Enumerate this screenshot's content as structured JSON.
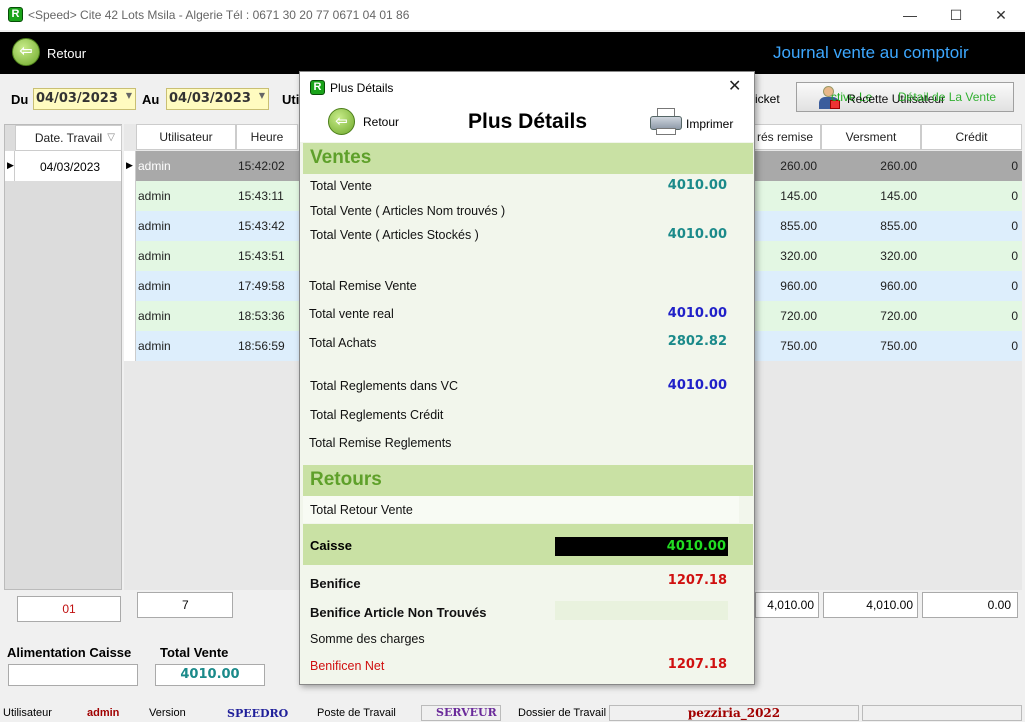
{
  "window": {
    "title": "<Speed>  Cite 42 Lots Msila - Algerie Tél : 0671 30 20 77      0671 04 01 86",
    "minimize": "—",
    "maximize": "☐",
    "close": "✕"
  },
  "header": {
    "back_label": "Retour",
    "page_title": "Journal vente au comptoir"
  },
  "filters": {
    "from_label": "Du",
    "from_date": "04/03/2023",
    "to_label": "Au",
    "to_date": "04/03/2023",
    "user_label_partial": "Uti",
    "ticket_partial": "icket",
    "recette_btn": "Recette Utilisateur",
    "detail_overlay": "Détail de La Vente",
    "detail_overlay_pre": "ctive Le"
  },
  "left_grid": {
    "header": "Date. Travail",
    "rows": [
      "04/03/2023"
    ],
    "footer_count": "01"
  },
  "grid": {
    "columns": {
      "utilisateur": "Utilisateur",
      "heure": "Heure",
      "apres_remise": "rés remise",
      "versment": "Versment",
      "credit": "Crédit"
    },
    "rows": [
      {
        "user": "admin",
        "time": "15:42:02",
        "remise": "260.00",
        "versment": "260.00",
        "credit": "0"
      },
      {
        "user": "admin",
        "time": "15:43:11",
        "remise": "145.00",
        "versment": "145.00",
        "credit": "0"
      },
      {
        "user": "admin",
        "time": "15:43:42",
        "remise": "855.00",
        "versment": "855.00",
        "credit": "0"
      },
      {
        "user": "admin",
        "time": "15:43:51",
        "remise": "320.00",
        "versment": "320.00",
        "credit": "0"
      },
      {
        "user": "admin",
        "time": "17:49:58",
        "remise": "960.00",
        "versment": "960.00",
        "credit": "0"
      },
      {
        "user": "admin",
        "time": "18:53:36",
        "remise": "720.00",
        "versment": "720.00",
        "credit": "0"
      },
      {
        "user": "admin",
        "time": "18:56:59",
        "remise": "750.00",
        "versment": "750.00",
        "credit": "0"
      }
    ],
    "footer": {
      "count": "7",
      "remise": "4,010.00",
      "versment": "4,010.00",
      "credit": "0.00"
    }
  },
  "bottom": {
    "alimentation_label": "Alimentation Caisse",
    "alimentation_value": "",
    "total_vente_label": "Total Vente",
    "total_vente_value": "4010.00"
  },
  "status": {
    "user_label": "Utilisateur",
    "user_value": "admin",
    "version_label": "Version",
    "version_value": "SPEEDRO",
    "poste_label": "Poste de Travail",
    "poste_value": "SERVEUR",
    "dossier_label": "Dossier de Travail",
    "dossier_value": "pezziria_2022"
  },
  "modal": {
    "title": "Plus Détails",
    "close": "✕",
    "back_label": "Retour",
    "heading": "Plus Détails",
    "print_label": "Imprimer",
    "ventes_title": "Ventes",
    "total_vente_label": "Total Vente",
    "total_vente_value": "4010.00",
    "nom_trouves_label": "Total Vente ( Articles Nom trouvés )",
    "stockes_label": "Total Vente ( Articles Stockés )",
    "stockes_value": "4010.00",
    "remise_label": "Total Remise Vente",
    "vente_real_label": "Total vente real",
    "vente_real_value": "4010.00",
    "achats_label": "Total Achats",
    "achats_value": "2802.82",
    "reglements_vc_label": "Total Reglements dans VC",
    "reglements_vc_value": "4010.00",
    "reglements_credit_label": "Total Reglements Crédit",
    "remise_reglements_label": "Total Remise  Reglements",
    "retours_title": "Retours",
    "retour_vente_label": "Total Retour Vente",
    "caisse_label": "Caisse",
    "caisse_value": "4010.00",
    "benifice_label": "Benifice",
    "benifice_value": "1207.18",
    "benifice_nt_label": "Benifice Article Non Trouvés",
    "charges_label": "Somme des charges",
    "benifice_net_label": "Benificen Net",
    "benifice_net_value": "1207.18"
  },
  "colors": {
    "accent_green": "#5ea02a",
    "section_bg": "#c9e1a4",
    "header_blue": "#3da8ff",
    "row_green": "#e3f7e3",
    "row_blue": "#ddeefc",
    "selected_row": "#a9a9a9"
  }
}
